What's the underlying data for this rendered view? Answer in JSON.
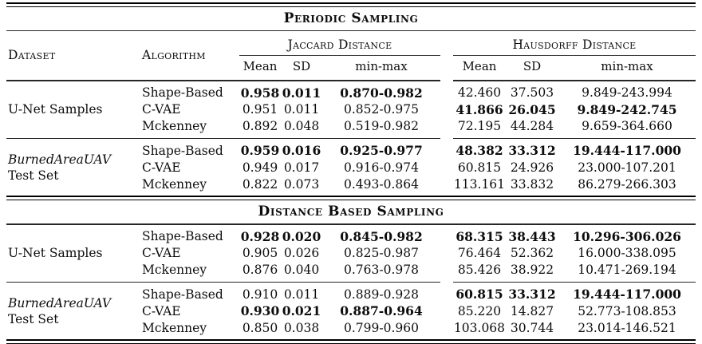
{
  "page": {
    "background": "#ffffff",
    "text_color": "#0d0d0d",
    "rule_color": "#262626"
  },
  "table": {
    "column_headers": {
      "dataset": "Dataset",
      "algorithm": "Algorithm",
      "group1": "Jaccard Distance",
      "group2": "Hausdorff Distance",
      "sub": [
        "Mean",
        "SD",
        "min-max",
        "Mean",
        "SD",
        "min-max"
      ]
    },
    "sections": [
      {
        "title": "Periodic Sampling",
        "groups": [
          {
            "dataset_lines": [
              {
                "text": "U-Net Samples",
                "italic": false
              }
            ],
            "rows": [
              {
                "algorithm": "Shape-Based",
                "values": [
                  "0.958",
                  "0.011",
                  "0.870-0.982",
                  "42.460",
                  "37.503",
                  "9.849-243.994"
                ],
                "bold": [
                  true,
                  true,
                  true,
                  false,
                  false,
                  false
                ]
              },
              {
                "algorithm": "C-VAE",
                "values": [
                  "0.951",
                  "0.011",
                  "0.852-0.975",
                  "41.866",
                  "26.045",
                  "9.849-242.745"
                ],
                "bold": [
                  false,
                  false,
                  false,
                  true,
                  true,
                  true
                ]
              },
              {
                "algorithm": "Mckenney",
                "values": [
                  "0.892",
                  "0.048",
                  "0.519-0.982",
                  "72.195",
                  "44.284",
                  "9.659-364.660"
                ],
                "bold": [
                  false,
                  false,
                  false,
                  false,
                  false,
                  false
                ]
              }
            ]
          },
          {
            "dataset_lines": [
              {
                "text": "BurnedAreaUAV",
                "italic": true
              },
              {
                "text": "Test Set",
                "italic": false
              }
            ],
            "rows": [
              {
                "algorithm": "Shape-Based",
                "values": [
                  "0.959",
                  "0.016",
                  "0.925-0.977",
                  "48.382",
                  "33.312",
                  "19.444-117.000"
                ],
                "bold": [
                  true,
                  true,
                  true,
                  true,
                  true,
                  true
                ]
              },
              {
                "algorithm": "C-VAE",
                "values": [
                  "0.949",
                  "0.017",
                  "0.916-0.974",
                  "60.815",
                  "24.926",
                  "23.000-107.201"
                ],
                "bold": [
                  false,
                  false,
                  false,
                  false,
                  false,
                  false
                ]
              },
              {
                "algorithm": "Mckenney",
                "values": [
                  "0.822",
                  "0.073",
                  "0.493-0.864",
                  "113.161",
                  "33.832",
                  "86.279-266.303"
                ],
                "bold": [
                  false,
                  false,
                  false,
                  false,
                  false,
                  false
                ]
              }
            ]
          }
        ]
      },
      {
        "title": "Distance Based Sampling",
        "groups": [
          {
            "dataset_lines": [
              {
                "text": "U-Net Samples",
                "italic": false
              }
            ],
            "rows": [
              {
                "algorithm": "Shape-Based",
                "values": [
                  "0.928",
                  "0.020",
                  "0.845-0.982",
                  "68.315",
                  "38.443",
                  "10.296-306.026"
                ],
                "bold": [
                  true,
                  true,
                  true,
                  true,
                  true,
                  true
                ]
              },
              {
                "algorithm": "C-VAE",
                "values": [
                  "0.905",
                  "0.026",
                  "0.825-0.987",
                  "76.464",
                  "52.362",
                  "16.000-338.095"
                ],
                "bold": [
                  false,
                  false,
                  false,
                  false,
                  false,
                  false
                ]
              },
              {
                "algorithm": "Mckenney",
                "values": [
                  "0.876",
                  "0.040",
                  "0.763-0.978",
                  "85.426",
                  "38.922",
                  "10.471-269.194"
                ],
                "bold": [
                  false,
                  false,
                  false,
                  false,
                  false,
                  false
                ]
              }
            ]
          },
          {
            "dataset_lines": [
              {
                "text": "BurnedAreaUAV",
                "italic": true
              },
              {
                "text": "Test Set",
                "italic": false
              }
            ],
            "rows": [
              {
                "algorithm": "Shape-Based",
                "values": [
                  "0.910",
                  "0.011",
                  "0.889-0.928",
                  "60.815",
                  "33.312",
                  "19.444-117.000"
                ],
                "bold": [
                  false,
                  false,
                  false,
                  true,
                  true,
                  true
                ]
              },
              {
                "algorithm": "C-VAE",
                "values": [
                  "0.930",
                  "0.021",
                  "0.887-0.964",
                  "85.220",
                  "14.827",
                  "52.773-108.853"
                ],
                "bold": [
                  true,
                  true,
                  true,
                  false,
                  false,
                  false
                ]
              },
              {
                "algorithm": "Mckenney",
                "values": [
                  "0.850",
                  "0.038",
                  "0.799-0.960",
                  "103.068",
                  "30.744",
                  "23.014-146.521"
                ],
                "bold": [
                  false,
                  false,
                  false,
                  false,
                  false,
                  false
                ]
              }
            ]
          }
        ]
      }
    ]
  }
}
